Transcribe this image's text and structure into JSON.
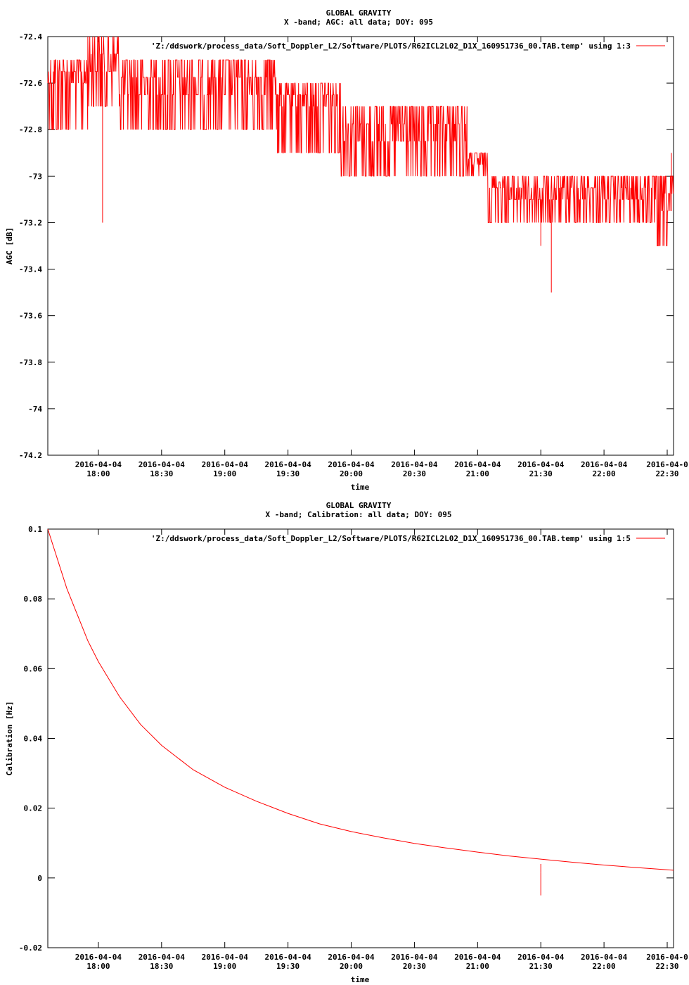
{
  "chart_data": [
    {
      "type": "line",
      "title": "GLOBAL GRAVITY",
      "subtitle": "X -band; AGC: all data; DOY: 095",
      "xlabel": "time",
      "ylabel": "AGC [dB]",
      "ylim": [
        -74.2,
        -72.4
      ],
      "yticks": [
        "-72.4",
        "-72.6",
        "-72.8",
        "-73",
        "-73.2",
        "-73.4",
        "-73.6",
        "-73.8",
        "-74",
        "-74.2"
      ],
      "xticks": [
        {
          "date": "2016-04-04",
          "time": "18:00"
        },
        {
          "date": "2016-04-04",
          "time": "18:30"
        },
        {
          "date": "2016-04-04",
          "time": "19:00"
        },
        {
          "date": "2016-04-04",
          "time": "19:30"
        },
        {
          "date": "2016-04-04",
          "time": "20:00"
        },
        {
          "date": "2016-04-04",
          "time": "20:30"
        },
        {
          "date": "2016-04-04",
          "time": "21:00"
        },
        {
          "date": "2016-04-04",
          "time": "21:30"
        },
        {
          "date": "2016-04-04",
          "time": "22:00"
        },
        {
          "date": "2016-04-0",
          "time": "22:30"
        }
      ],
      "legend": "'Z:/ddswork/process_data/Soft_Doppler_L2/Software/PLOTS/R62ICL2L02_D1X_160951736_00.TAB.temp' using 1:3",
      "legend_position": "top-right",
      "color": "#ff0000",
      "series": [
        {
          "name": "'Z:/ddswork/process_data/Soft_Doppler_L2/Software/PLOTS/R62ICL2L02_D1X_160951736_00.TAB.temp' using 1:3",
          "segments": [
            {
              "from": "17:36",
              "to": "17:55",
              "base": -72.6,
              "hi": -72.5,
              "lo": -72.8
            },
            {
              "from": "17:55",
              "to": "18:10",
              "base": -72.55,
              "hi": -72.4,
              "lo": -72.7
            },
            {
              "from": "18:10",
              "to": "19:25",
              "base": -72.65,
              "hi": -72.5,
              "lo": -72.8
            },
            {
              "from": "19:25",
              "to": "19:55",
              "base": -72.7,
              "hi": -72.6,
              "lo": -72.9
            },
            {
              "from": "19:55",
              "to": "20:05",
              "base": -72.85,
              "hi": -72.7,
              "lo": -73.0
            },
            {
              "from": "20:05",
              "to": "20:55",
              "base": -72.85,
              "hi": -72.7,
              "lo": -73.0
            },
            {
              "from": "20:55",
              "to": "21:05",
              "base": -72.95,
              "hi": -72.9,
              "lo": -73.0
            },
            {
              "from": "21:05",
              "to": "21:15",
              "base": -73.05,
              "hi": -73.0,
              "lo": -73.2
            },
            {
              "from": "21:15",
              "to": "22:25",
              "base": -73.1,
              "hi": -73.0,
              "lo": -73.2
            },
            {
              "from": "22:25",
              "to": "22:33",
              "base": -73.15,
              "hi": -73.0,
              "lo": -73.3
            }
          ],
          "spikes": [
            {
              "time": "18:02",
              "value": -73.2
            },
            {
              "time": "21:30",
              "value": -73.3
            },
            {
              "time": "21:35",
              "value": -73.5
            },
            {
              "time": "22:28",
              "value": -73.3
            },
            {
              "time": "22:32",
              "value": -72.9
            }
          ]
        }
      ]
    },
    {
      "type": "line",
      "title": "GLOBAL GRAVITY",
      "subtitle": "X -band; Calibration: all data; DOY: 095",
      "xlabel": "time",
      "ylabel": "Calibration [Hz]",
      "ylim": [
        -0.02,
        0.1
      ],
      "yticks": [
        "0.1",
        "0.08",
        "0.06",
        "0.04",
        "0.02",
        "0",
        "-0.02"
      ],
      "xticks": [
        {
          "date": "2016-04-04",
          "time": "18:00"
        },
        {
          "date": "2016-04-04",
          "time": "18:30"
        },
        {
          "date": "2016-04-04",
          "time": "19:00"
        },
        {
          "date": "2016-04-04",
          "time": "19:30"
        },
        {
          "date": "2016-04-04",
          "time": "20:00"
        },
        {
          "date": "2016-04-04",
          "time": "20:30"
        },
        {
          "date": "2016-04-04",
          "time": "21:00"
        },
        {
          "date": "2016-04-04",
          "time": "21:30"
        },
        {
          "date": "2016-04-04",
          "time": "22:00"
        },
        {
          "date": "2016-04-0",
          "time": "22:30"
        }
      ],
      "legend": "'Z:/ddswork/process_data/Soft_Doppler_L2/Software/PLOTS/R62ICL2L02_D1X_160951736_00.TAB.temp' using 1:5",
      "legend_position": "top-right",
      "color": "#ff0000",
      "series": [
        {
          "name": "'Z:/ddswork/process_data/Soft_Doppler_L2/Software/PLOTS/R62ICL2L02_D1X_160951736_00.TAB.temp' using 1:5",
          "points": [
            [
              "17:36",
              0.1
            ],
            [
              "17:45",
              0.083
            ],
            [
              "17:55",
              0.068
            ],
            [
              "18:00",
              0.062
            ],
            [
              "18:10",
              0.052
            ],
            [
              "18:20",
              0.044
            ],
            [
              "18:30",
              0.038
            ],
            [
              "18:45",
              0.031
            ],
            [
              "19:00",
              0.026
            ],
            [
              "19:15",
              0.022
            ],
            [
              "19:30",
              0.0185
            ],
            [
              "19:45",
              0.0155
            ],
            [
              "20:00",
              0.0133
            ],
            [
              "20:15",
              0.0115
            ],
            [
              "20:30",
              0.0099
            ],
            [
              "20:45",
              0.0086
            ],
            [
              "21:00",
              0.0074
            ],
            [
              "21:15",
              0.0063
            ],
            [
              "21:30",
              0.0054
            ],
            [
              "21:45",
              0.0045
            ],
            [
              "22:00",
              0.0037
            ],
            [
              "22:15",
              0.003
            ],
            [
              "22:33",
              0.0022
            ]
          ],
          "spikes": [
            {
              "time": "21:30",
              "value": -0.005
            },
            {
              "time": "21:30",
              "value": 0.004
            }
          ]
        }
      ]
    }
  ]
}
